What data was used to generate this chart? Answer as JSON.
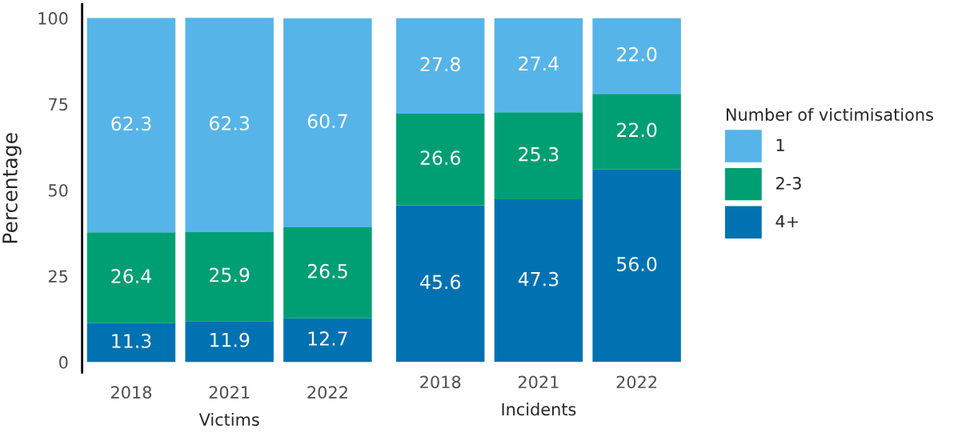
{
  "chart_data": [
    {
      "type": "bar",
      "stacked": true,
      "xlabel": "Victims",
      "ylabel": "Percentage",
      "categories": [
        "2018",
        "2021",
        "2022"
      ],
      "ylim": [
        -3,
        104
      ],
      "yticks": [
        0,
        25,
        50,
        75,
        100
      ],
      "data_labels": true,
      "grid": false,
      "legend": "right",
      "legend_title": "Number of victimisations",
      "series": [
        {
          "name": "4+",
          "color": "#0072b2",
          "values": [
            11.3,
            11.9,
            12.7
          ]
        },
        {
          "name": "2-3",
          "color": "#009e73",
          "values": [
            26.4,
            25.9,
            26.5
          ]
        },
        {
          "name": "1",
          "color": "#56b4e9",
          "values": [
            62.3,
            62.3,
            60.7
          ]
        }
      ]
    },
    {
      "type": "bar",
      "stacked": true,
      "xlabel": "Incidents",
      "categories": [
        "2018",
        "2021",
        "2022"
      ],
      "ylim": [
        0,
        100
      ],
      "yticks": [
        0,
        25,
        50,
        75,
        100
      ],
      "tick_labels": "x",
      "series": [
        {
          "color": "#0072b2",
          "values": [
            45.6,
            47.3,
            56.0
          ],
          "value_labels": [
            "45.6",
            "47.3",
            "56.0"
          ]
        },
        {
          "color": "#009e73",
          "values": [
            26.6,
            25.3,
            22.0
          ],
          "value_labels": [
            "26.6",
            "25.3",
            "22.0"
          ]
        },
        {
          "color": "#56b4e9",
          "values": [
            27.8,
            27.4,
            22.0
          ],
          "value_labels": [
            "27.8",
            "27.4",
            "22.0"
          ]
        }
      ]
    }
  ]
}
